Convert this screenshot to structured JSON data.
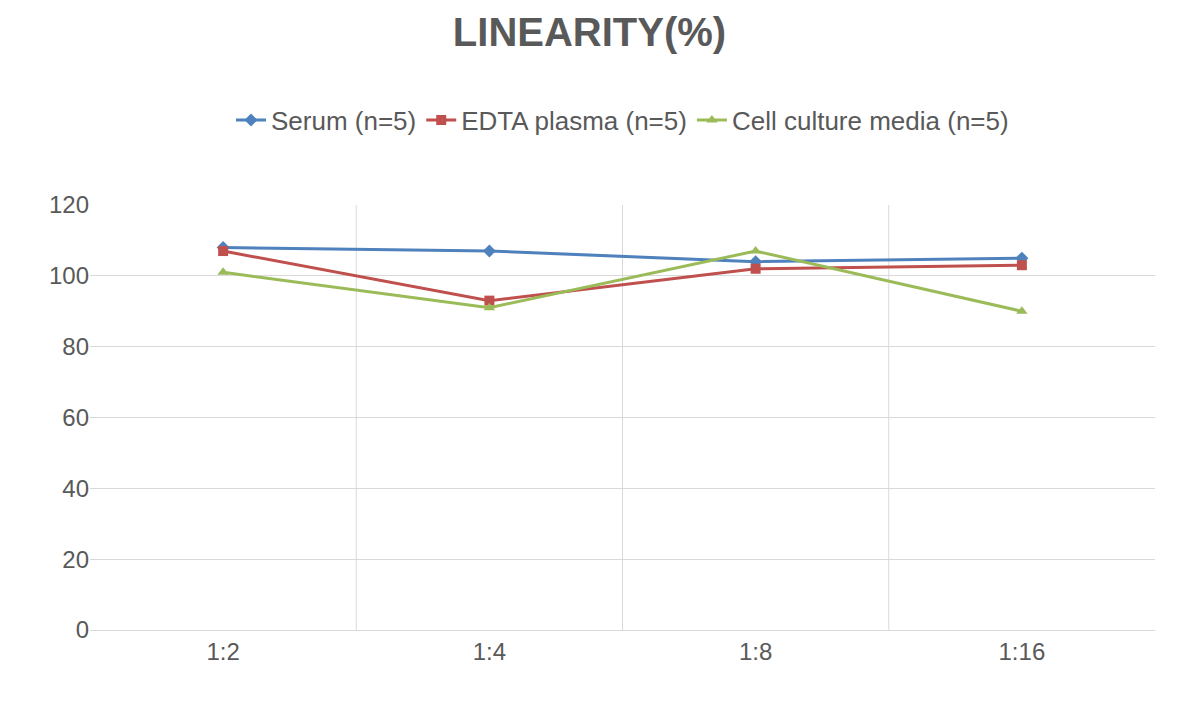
{
  "chart_data": {
    "type": "line",
    "title": "LINEARITY(%)",
    "categories": [
      "1:2",
      "1:4",
      "1:8",
      "1:16"
    ],
    "series": [
      {
        "name": "Serum (n=5)",
        "color": "#4f81bd",
        "marker": "diamond",
        "values": [
          108,
          107,
          104,
          105
        ]
      },
      {
        "name": "EDTA plasma (n=5)",
        "color": "#c0504d",
        "marker": "square",
        "values": [
          107,
          93,
          102,
          103
        ]
      },
      {
        "name": "Cell culture media (n=5)",
        "color": "#9bbb59",
        "marker": "triangle-up",
        "values": [
          101,
          91,
          107,
          90
        ]
      }
    ],
    "ylim": [
      0,
      120
    ],
    "yticks": [
      0,
      20,
      40,
      60,
      80,
      100,
      120
    ],
    "grid": true,
    "legend": "top"
  }
}
